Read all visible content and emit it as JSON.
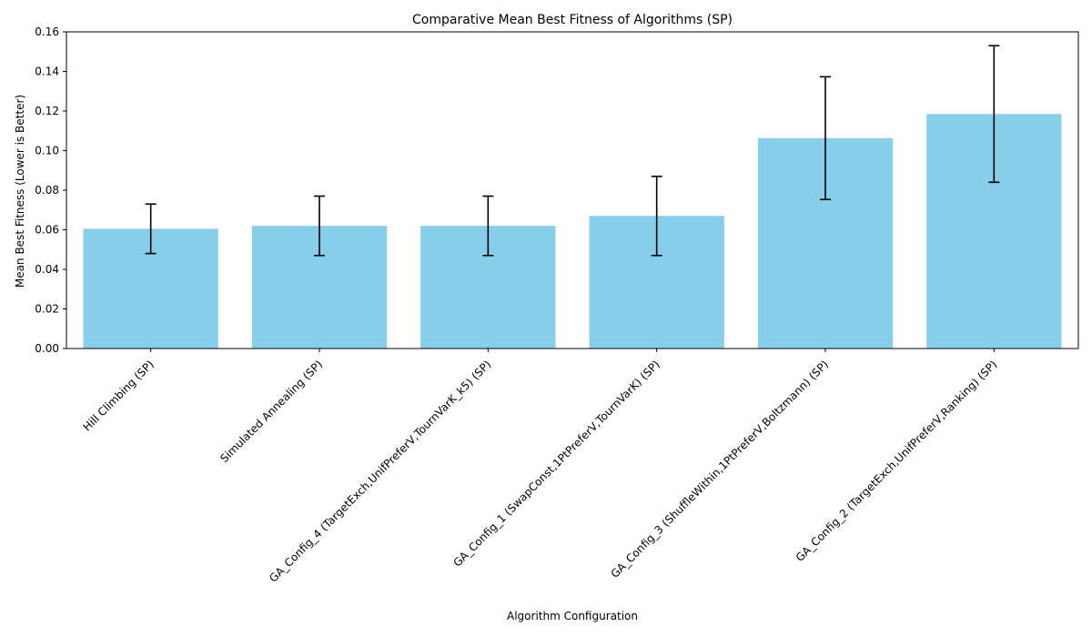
{
  "chart_data": {
    "type": "bar",
    "title": "Comparative Mean Best Fitness of Algorithms (SP)",
    "xlabel": "Algorithm Configuration",
    "ylabel": "Mean Best Fitness (Lower is Better)",
    "ylim": [
      0,
      0.16
    ],
    "yticks": [
      "0.00",
      "0.02",
      "0.04",
      "0.06",
      "0.08",
      "0.10",
      "0.12",
      "0.14",
      "0.16"
    ],
    "categories": [
      "Hill Climbing (SP)",
      "Simulated Annealing (SP)",
      "GA_Config_4 (TargetExch,UnifPreferV,TournVarK_k5) (SP)",
      "GA_Config_1 (SwapConst,1PtPreferV,TournVarK) (SP)",
      "GA_Config_3 (ShuffleWithin,1PtPreferV,Boltzmann) (SP)",
      "GA_Config_2 (TargetExch,UnifPreferV,Ranking) (SP)"
    ],
    "values": [
      0.0605,
      0.062,
      0.062,
      0.067,
      0.1063,
      0.1185
    ],
    "errors": [
      0.0125,
      0.015,
      0.015,
      0.02,
      0.031,
      0.0345
    ],
    "bar_color": "#87ceeb",
    "error_color": "#000000",
    "grid": false,
    "legend": "none"
  }
}
